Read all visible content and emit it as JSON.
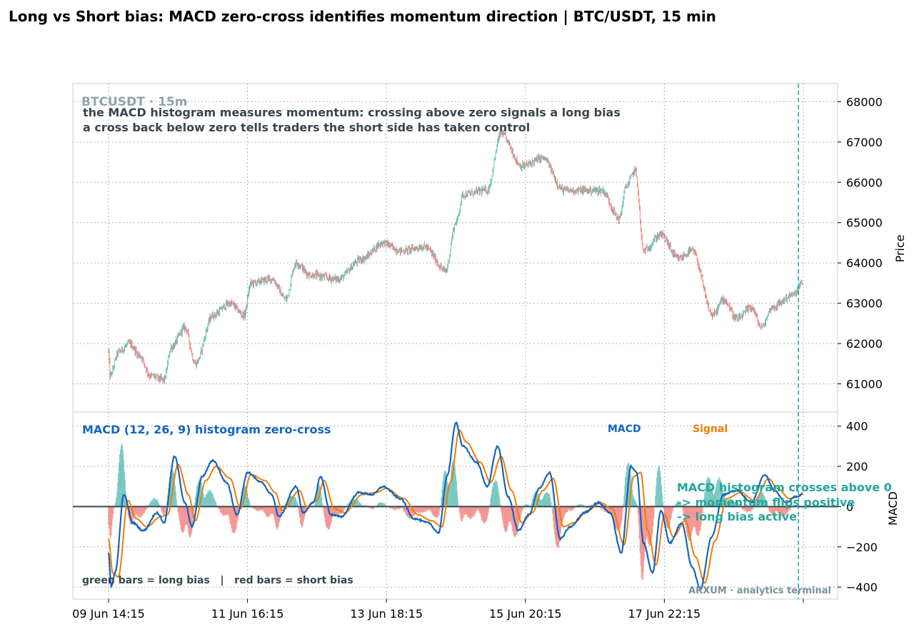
{
  "page_title": "Long vs Short bias: MACD zero-cross identifies momentum direction  |  BTC/USDT, 15 min",
  "colors": {
    "up": "#26a69a",
    "down": "#ef5350",
    "macd": "#1565c0",
    "signal": "#ef7d00",
    "hist_pos": "#26a69a",
    "hist_neg": "#ef5350",
    "annotation": "#26a69a",
    "text_dark": "#37474f",
    "watermark": "#90a4ae"
  },
  "chart_data": [
    {
      "type": "candlestick",
      "panel": "price",
      "watermark": "BTCUSDT · 15m",
      "annotation_lines": [
        "the MACD histogram measures momentum: crossing above zero signals a long bias",
        "a cross back below zero tells traders the short side has taken control"
      ],
      "ylabel": "Price",
      "ylim": [
        60300,
        68450
      ],
      "yticks": [
        61000,
        62000,
        63000,
        64000,
        65000,
        66000,
        67000,
        68000
      ],
      "x_ticks": [
        "09 Jun 14:15",
        "11 Jun 16:15",
        "13 Jun 18:15",
        "15 Jun 20:15",
        "17 Jun 22:15",
        ""
      ],
      "x_tick_day_offsets": [
        0,
        2.0833,
        4.1667,
        6.25,
        8.3333,
        10.4167
      ],
      "bar_count": 1000,
      "bar_interval_minutes": 15,
      "grid": true,
      "price_path_keypoints": [
        [
          0,
          61800
        ],
        [
          2,
          61200
        ],
        [
          15,
          61800
        ],
        [
          30,
          62000
        ],
        [
          45,
          61700
        ],
        [
          60,
          61200
        ],
        [
          80,
          61100
        ],
        [
          90,
          61900
        ],
        [
          110,
          62400
        ],
        [
          125,
          61500
        ],
        [
          150,
          62700
        ],
        [
          175,
          63000
        ],
        [
          195,
          62700
        ],
        [
          205,
          63500
        ],
        [
          235,
          63600
        ],
        [
          255,
          63100
        ],
        [
          270,
          64000
        ],
        [
          290,
          63700
        ],
        [
          330,
          63600
        ],
        [
          365,
          64100
        ],
        [
          395,
          64500
        ],
        [
          420,
          64300
        ],
        [
          455,
          64400
        ],
        [
          485,
          63800
        ],
        [
          500,
          65000
        ],
        [
          510,
          65700
        ],
        [
          545,
          65800
        ],
        [
          565,
          67200
        ],
        [
          595,
          66400
        ],
        [
          625,
          66600
        ],
        [
          655,
          65800
        ],
        [
          710,
          65800
        ],
        [
          735,
          65100
        ],
        [
          745,
          65900
        ],
        [
          758,
          66300
        ],
        [
          770,
          64300
        ],
        [
          795,
          64700
        ],
        [
          820,
          64100
        ],
        [
          840,
          64300
        ],
        [
          870,
          62700
        ],
        [
          885,
          63100
        ],
        [
          905,
          62600
        ],
        [
          925,
          62900
        ],
        [
          940,
          62400
        ],
        [
          955,
          62900
        ],
        [
          985,
          63200
        ],
        [
          999,
          63500
        ]
      ]
    },
    {
      "type": "line+histogram",
      "panel": "macd",
      "title": "MACD (12, 26, 9) histogram zero-cross",
      "legend": [
        "MACD",
        "Signal"
      ],
      "series": [
        {
          "name": "MACD",
          "color": "#1565c0"
        },
        {
          "name": "Signal",
          "color": "#ef7d00"
        }
      ],
      "ylabel": "MACD",
      "ylim": [
        -460,
        470
      ],
      "yticks": [
        -400,
        -200,
        0,
        200,
        400
      ],
      "zero_line": true,
      "annotation": [
        "MACD histogram crosses above 0",
        "-> momentum flips positive",
        "-> long bias active"
      ],
      "annotation_bar_index": 993,
      "note": "green bars = long bias   |   red bars = short bias",
      "footer": "ARXUM · analytics terminal",
      "macd_keypoints": [
        [
          0,
          -230
        ],
        [
          4,
          -400
        ],
        [
          10,
          -320
        ],
        [
          22,
          60
        ],
        [
          35,
          -80
        ],
        [
          50,
          -120
        ],
        [
          70,
          -30
        ],
        [
          80,
          -80
        ],
        [
          95,
          250
        ],
        [
          110,
          20
        ],
        [
          120,
          -100
        ],
        [
          135,
          150
        ],
        [
          150,
          230
        ],
        [
          170,
          120
        ],
        [
          185,
          -40
        ],
        [
          200,
          170
        ],
        [
          220,
          120
        ],
        [
          235,
          60
        ],
        [
          245,
          -50
        ],
        [
          270,
          100
        ],
        [
          280,
          -30
        ],
        [
          295,
          20
        ],
        [
          305,
          150
        ],
        [
          320,
          -40
        ],
        [
          335,
          -50
        ],
        [
          360,
          70
        ],
        [
          380,
          60
        ],
        [
          395,
          100
        ],
        [
          420,
          40
        ],
        [
          440,
          -60
        ],
        [
          460,
          -80
        ],
        [
          475,
          -130
        ],
        [
          488,
          160
        ],
        [
          500,
          420
        ],
        [
          510,
          300
        ],
        [
          530,
          220
        ],
        [
          545,
          100
        ],
        [
          560,
          300
        ],
        [
          575,
          50
        ],
        [
          590,
          -120
        ],
        [
          605,
          -40
        ],
        [
          620,
          90
        ],
        [
          635,
          170
        ],
        [
          650,
          -160
        ],
        [
          665,
          -100
        ],
        [
          685,
          -30
        ],
        [
          705,
          20
        ],
        [
          722,
          -30
        ],
        [
          738,
          -230
        ],
        [
          752,
          200
        ],
        [
          760,
          170
        ],
        [
          770,
          -180
        ],
        [
          783,
          -330
        ],
        [
          795,
          -20
        ],
        [
          808,
          -180
        ],
        [
          825,
          -80
        ],
        [
          840,
          -300
        ],
        [
          852,
          -410
        ],
        [
          868,
          -150
        ],
        [
          885,
          60
        ],
        [
          905,
          80
        ],
        [
          925,
          20
        ],
        [
          945,
          160
        ],
        [
          958,
          80
        ],
        [
          975,
          20
        ],
        [
          990,
          50
        ],
        [
          999,
          60
        ]
      ],
      "signal_keypoints": [
        [
          0,
          -160
        ],
        [
          6,
          -330
        ],
        [
          14,
          -350
        ],
        [
          28,
          30
        ],
        [
          40,
          -60
        ],
        [
          55,
          -100
        ],
        [
          75,
          -50
        ],
        [
          85,
          -40
        ],
        [
          100,
          210
        ],
        [
          115,
          60
        ],
        [
          125,
          -70
        ],
        [
          140,
          130
        ],
        [
          155,
          200
        ],
        [
          175,
          140
        ],
        [
          190,
          -10
        ],
        [
          205,
          160
        ],
        [
          225,
          130
        ],
        [
          240,
          70
        ],
        [
          250,
          -20
        ],
        [
          275,
          80
        ],
        [
          285,
          0
        ],
        [
          300,
          30
        ],
        [
          310,
          130
        ],
        [
          325,
          -10
        ],
        [
          340,
          -30
        ],
        [
          365,
          60
        ],
        [
          385,
          70
        ],
        [
          400,
          90
        ],
        [
          425,
          40
        ],
        [
          445,
          -40
        ],
        [
          465,
          -70
        ],
        [
          480,
          -100
        ],
        [
          492,
          120
        ],
        [
          505,
          380
        ],
        [
          515,
          320
        ],
        [
          535,
          220
        ],
        [
          550,
          120
        ],
        [
          565,
          250
        ],
        [
          580,
          80
        ],
        [
          595,
          -80
        ],
        [
          610,
          -30
        ],
        [
          625,
          80
        ],
        [
          640,
          140
        ],
        [
          655,
          -100
        ],
        [
          670,
          -80
        ],
        [
          690,
          -20
        ],
        [
          708,
          20
        ],
        [
          725,
          -10
        ],
        [
          742,
          -190
        ],
        [
          756,
          150
        ],
        [
          766,
          170
        ],
        [
          776,
          -120
        ],
        [
          788,
          -290
        ],
        [
          800,
          -40
        ],
        [
          813,
          -150
        ],
        [
          830,
          -70
        ],
        [
          845,
          -250
        ],
        [
          858,
          -380
        ],
        [
          873,
          -170
        ],
        [
          890,
          40
        ],
        [
          910,
          70
        ],
        [
          930,
          30
        ],
        [
          950,
          140
        ],
        [
          963,
          90
        ],
        [
          980,
          40
        ],
        [
          994,
          50
        ],
        [
          999,
          70
        ]
      ]
    }
  ]
}
